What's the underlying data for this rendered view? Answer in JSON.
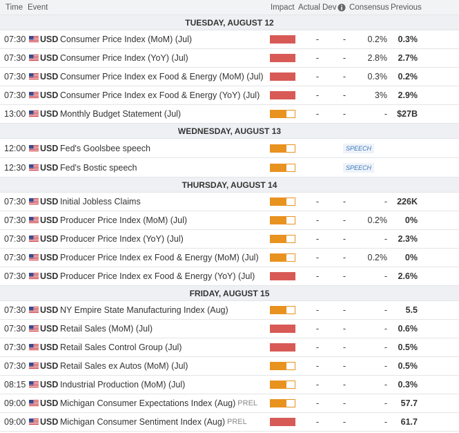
{
  "header": {
    "time": "Time",
    "event": "Event",
    "impact": "Impact",
    "actual": "Actual",
    "dev": "Dev",
    "consensus": "Consensus",
    "previous": "Previous"
  },
  "days": [
    {
      "label": "TUESDAY, AUGUST 12",
      "events": [
        {
          "time": "07:30",
          "currency": "USD",
          "name": "Consumer Price Index (MoM) (Jul)",
          "impact": "high",
          "actual": "-",
          "dev": "-",
          "consensus": "0.2%",
          "previous": "0.3%"
        },
        {
          "time": "07:30",
          "currency": "USD",
          "name": "Consumer Price Index (YoY) (Jul)",
          "impact": "high",
          "actual": "-",
          "dev": "-",
          "consensus": "2.8%",
          "previous": "2.7%"
        },
        {
          "time": "07:30",
          "currency": "USD",
          "name": "Consumer Price Index ex Food & Energy (MoM) (Jul)",
          "impact": "high",
          "actual": "-",
          "dev": "-",
          "consensus": "0.3%",
          "previous": "0.2%"
        },
        {
          "time": "07:30",
          "currency": "USD",
          "name": "Consumer Price Index ex Food & Energy (YoY) (Jul)",
          "impact": "high",
          "actual": "-",
          "dev": "-",
          "consensus": "3%",
          "previous": "2.9%"
        },
        {
          "time": "13:00",
          "currency": "USD",
          "name": "Monthly Budget Statement (Jul)",
          "impact": "medium",
          "actual": "-",
          "dev": "-",
          "consensus": "-",
          "previous": "$27B"
        }
      ]
    },
    {
      "label": "WEDNESDAY, AUGUST 13",
      "events": [
        {
          "time": "12:00",
          "currency": "USD",
          "name": "Fed's Goolsbee speech",
          "impact": "medium",
          "tag": "SPEECH"
        },
        {
          "time": "12:30",
          "currency": "USD",
          "name": "Fed's Bostic speech",
          "impact": "medium",
          "tag": "SPEECH"
        }
      ]
    },
    {
      "label": "THURSDAY, AUGUST 14",
      "events": [
        {
          "time": "07:30",
          "currency": "USD",
          "name": "Initial Jobless Claims",
          "impact": "medium",
          "actual": "-",
          "dev": "-",
          "consensus": "-",
          "previous": "226K"
        },
        {
          "time": "07:30",
          "currency": "USD",
          "name": "Producer Price Index (MoM) (Jul)",
          "impact": "medium",
          "actual": "-",
          "dev": "-",
          "consensus": "0.2%",
          "previous": "0%"
        },
        {
          "time": "07:30",
          "currency": "USD",
          "name": "Producer Price Index (YoY) (Jul)",
          "impact": "medium",
          "actual": "-",
          "dev": "-",
          "consensus": "-",
          "previous": "2.3%"
        },
        {
          "time": "07:30",
          "currency": "USD",
          "name": "Producer Price Index ex Food & Energy (MoM) (Jul)",
          "impact": "medium",
          "actual": "-",
          "dev": "-",
          "consensus": "0.2%",
          "previous": "0%"
        },
        {
          "time": "07:30",
          "currency": "USD",
          "name": "Producer Price Index ex Food & Energy (YoY) (Jul)",
          "impact": "high",
          "actual": "-",
          "dev": "-",
          "consensus": "-",
          "previous": "2.6%"
        }
      ]
    },
    {
      "label": "FRIDAY, AUGUST 15",
      "events": [
        {
          "time": "07:30",
          "currency": "USD",
          "name": "NY Empire State Manufacturing Index (Aug)",
          "impact": "medium",
          "actual": "-",
          "dev": "-",
          "consensus": "-",
          "previous": "5.5"
        },
        {
          "time": "07:30",
          "currency": "USD",
          "name": "Retail Sales (MoM) (Jul)",
          "impact": "high",
          "actual": "-",
          "dev": "-",
          "consensus": "-",
          "previous": "0.6%"
        },
        {
          "time": "07:30",
          "currency": "USD",
          "name": "Retail Sales Control Group (Jul)",
          "impact": "high",
          "actual": "-",
          "dev": "-",
          "consensus": "-",
          "previous": "0.5%"
        },
        {
          "time": "07:30",
          "currency": "USD",
          "name": "Retail Sales ex Autos (MoM) (Jul)",
          "impact": "medium",
          "actual": "-",
          "dev": "-",
          "consensus": "-",
          "previous": "0.5%"
        },
        {
          "time": "08:15",
          "currency": "USD",
          "name": "Industrial Production (MoM) (Jul)",
          "impact": "medium",
          "actual": "-",
          "dev": "-",
          "consensus": "-",
          "previous": "0.3%"
        },
        {
          "time": "09:00",
          "currency": "USD",
          "name": "Michigan Consumer Expectations Index (Aug)",
          "suffix": "PREL",
          "impact": "medium",
          "actual": "-",
          "dev": "-",
          "consensus": "-",
          "previous": "57.7"
        },
        {
          "time": "09:00",
          "currency": "USD",
          "name": "Michigan Consumer Sentiment Index (Aug)",
          "suffix": "PREL",
          "impact": "high",
          "actual": "-",
          "dev": "-",
          "consensus": "-",
          "previous": "61.7"
        }
      ]
    }
  ]
}
